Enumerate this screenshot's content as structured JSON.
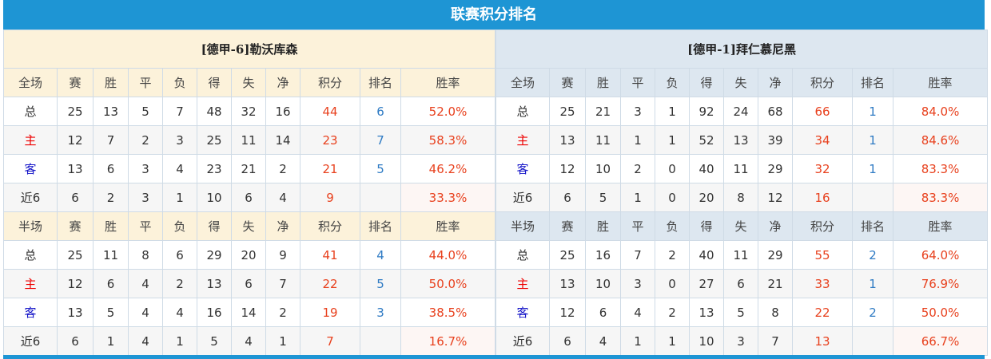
{
  "title": "联赛积分排名",
  "columns": [
    "赛",
    "胜",
    "平",
    "负",
    "得",
    "失",
    "净",
    "积分",
    "排名",
    "胜率"
  ],
  "colors": {
    "accent": "#1e95d4",
    "points": "#e8411e",
    "rank": "#2f7bc4",
    "home": "#e00000",
    "away": "#1515c8"
  },
  "teams": [
    {
      "name": "[德甲-6]勒沃库森",
      "sections": [
        {
          "label": "全场",
          "rows": [
            [
              "总",
              "25",
              "13",
              "5",
              "7",
              "48",
              "32",
              "16",
              "44",
              "6",
              "52.0%"
            ],
            [
              "主",
              "12",
              "7",
              "2",
              "3",
              "25",
              "11",
              "14",
              "23",
              "7",
              "58.3%"
            ],
            [
              "客",
              "13",
              "6",
              "3",
              "4",
              "23",
              "21",
              "2",
              "21",
              "5",
              "46.2%"
            ],
            [
              "近6",
              "6",
              "2",
              "3",
              "1",
              "10",
              "6",
              "4",
              "9",
              "",
              "33.3%"
            ]
          ]
        },
        {
          "label": "半场",
          "rows": [
            [
              "总",
              "25",
              "11",
              "8",
              "6",
              "29",
              "20",
              "9",
              "41",
              "4",
              "44.0%"
            ],
            [
              "主",
              "12",
              "6",
              "4",
              "2",
              "13",
              "6",
              "7",
              "22",
              "5",
              "50.0%"
            ],
            [
              "客",
              "13",
              "5",
              "4",
              "4",
              "16",
              "14",
              "2",
              "19",
              "3",
              "38.5%"
            ],
            [
              "近6",
              "6",
              "1",
              "4",
              "1",
              "5",
              "4",
              "1",
              "7",
              "",
              "16.7%"
            ]
          ]
        }
      ]
    },
    {
      "name": "[德甲-1]拜仁慕尼黑",
      "sections": [
        {
          "label": "全场",
          "rows": [
            [
              "总",
              "25",
              "21",
              "3",
              "1",
              "92",
              "24",
              "68",
              "66",
              "1",
              "84.0%"
            ],
            [
              "主",
              "13",
              "11",
              "1",
              "1",
              "52",
              "13",
              "39",
              "34",
              "1",
              "84.6%"
            ],
            [
              "客",
              "12",
              "10",
              "2",
              "0",
              "40",
              "11",
              "29",
              "32",
              "1",
              "83.3%"
            ],
            [
              "近6",
              "6",
              "5",
              "1",
              "0",
              "20",
              "8",
              "12",
              "16",
              "",
              "83.3%"
            ]
          ]
        },
        {
          "label": "半场",
          "rows": [
            [
              "总",
              "25",
              "16",
              "7",
              "2",
              "40",
              "11",
              "29",
              "55",
              "2",
              "64.0%"
            ],
            [
              "主",
              "13",
              "10",
              "3",
              "0",
              "27",
              "6",
              "21",
              "33",
              "1",
              "76.9%"
            ],
            [
              "客",
              "12",
              "6",
              "4",
              "2",
              "13",
              "5",
              "8",
              "22",
              "2",
              "50.0%"
            ],
            [
              "近6",
              "6",
              "4",
              "1",
              "1",
              "10",
              "3",
              "7",
              "13",
              "",
              "66.7%"
            ]
          ]
        }
      ]
    }
  ]
}
